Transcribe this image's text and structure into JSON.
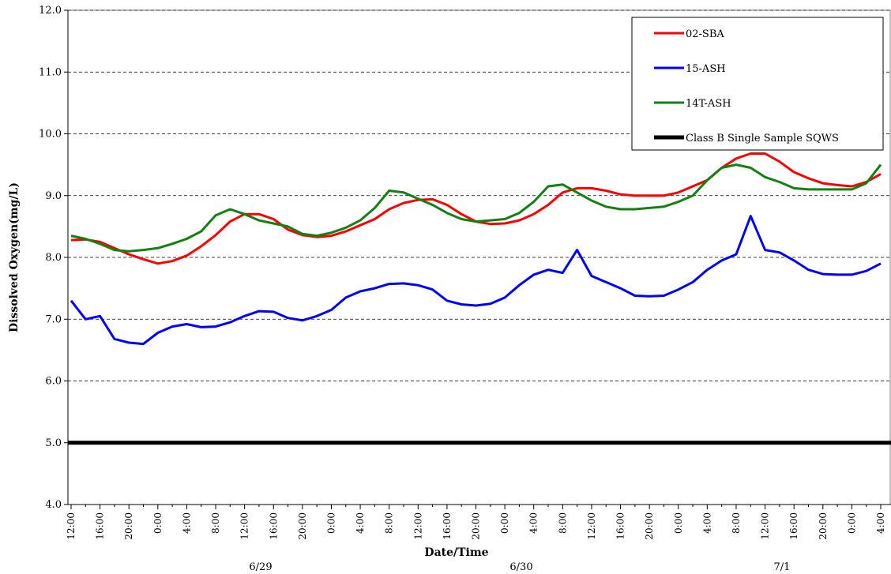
{
  "chart_data": {
    "type": "line",
    "x_label": "Date/Time",
    "y_label": "Dissolved Oxygen(mg/L)",
    "categories": [
      "12:00",
      null,
      "16:00",
      null,
      "20:00",
      null,
      "0:00",
      null,
      "4:00",
      null,
      "8:00",
      null,
      "12:00",
      null,
      "16:00",
      null,
      "20:00",
      null,
      "0:00",
      null,
      "4:00",
      null,
      "8:00",
      null,
      "12:00",
      null,
      "16:00",
      null,
      "20:00",
      null,
      "0:00",
      null,
      "4:00",
      null,
      "8:00",
      null,
      "12:00",
      null,
      "16:00",
      null,
      "20:00",
      null,
      "0:00",
      null,
      "4:00",
      null,
      "8:00",
      null,
      "12:00",
      null,
      "16:00",
      null,
      "20:00",
      null,
      "0:00",
      null,
      "4:00"
    ],
    "date_labels": [
      "6/29",
      "6/30",
      "7/1"
    ],
    "series": [
      {
        "name": "02-SBA",
        "color": "#ff0000",
        "values": [
          8.28,
          8.29,
          8.25,
          8.15,
          8.05,
          7.97,
          7.9,
          7.94,
          8.03,
          8.18,
          8.36,
          8.58,
          8.7,
          8.7,
          8.62,
          8.45,
          8.36,
          8.33,
          8.35,
          8.42,
          8.52,
          8.62,
          8.78,
          8.88,
          8.93,
          8.94,
          8.85,
          8.7,
          8.58,
          8.54,
          8.55,
          8.6,
          8.7,
          8.85,
          9.05,
          9.12,
          9.12,
          9.08,
          9.02,
          9.0,
          9.0,
          9.0,
          9.05,
          9.15,
          9.25,
          9.45,
          9.6,
          9.68,
          9.68,
          9.55,
          9.38,
          9.28,
          9.2,
          9.17,
          9.15,
          9.22,
          9.35
        ]
      },
      {
        "name": "15-ASH",
        "color": "#0000ff",
        "values": [
          7.3,
          7.0,
          7.05,
          6.68,
          6.62,
          6.6,
          6.78,
          6.88,
          6.92,
          6.87,
          6.88,
          6.95,
          7.05,
          7.13,
          7.12,
          7.02,
          6.98,
          7.05,
          7.15,
          7.35,
          7.45,
          7.5,
          7.57,
          7.58,
          7.55,
          7.48,
          7.3,
          7.24,
          7.22,
          7.25,
          7.35,
          7.55,
          7.72,
          7.8,
          7.75,
          8.12,
          7.7,
          7.6,
          7.5,
          7.38,
          7.37,
          7.38,
          7.48,
          7.6,
          7.8,
          7.95,
          8.05,
          8.67,
          8.12,
          8.08,
          7.95,
          7.8,
          7.73,
          7.72,
          7.72,
          7.78,
          7.9
        ]
      },
      {
        "name": "14T-ASH",
        "color": "#138013",
        "values": [
          8.35,
          8.3,
          8.22,
          8.12,
          8.1,
          8.12,
          8.15,
          8.22,
          8.3,
          8.42,
          8.68,
          8.78,
          8.7,
          8.6,
          8.55,
          8.5,
          8.38,
          8.35,
          8.4,
          8.48,
          8.6,
          8.8,
          9.08,
          9.05,
          8.95,
          8.85,
          8.72,
          8.62,
          8.58,
          8.6,
          8.62,
          8.72,
          8.9,
          9.15,
          9.18,
          9.05,
          8.92,
          8.82,
          8.78,
          8.78,
          8.8,
          8.82,
          8.9,
          9.0,
          9.25,
          9.45,
          9.5,
          9.45,
          9.3,
          9.22,
          9.12,
          9.1,
          9.1,
          9.1,
          9.1,
          9.2,
          9.5
        ]
      }
    ],
    "threshold": {
      "name": "Class B Single Sample SQWS",
      "value": 5,
      "color": "#000000"
    },
    "ylim": [
      4,
      12
    ],
    "yticks": [
      {
        "value": 4,
        "label": "4.0"
      },
      {
        "value": 5,
        "label": "5.0"
      },
      {
        "value": 6,
        "label": "6.0"
      },
      {
        "value": 7,
        "label": "7.0"
      },
      {
        "value": 8,
        "label": "8.0"
      },
      {
        "value": 9,
        "label": "9.0"
      },
      {
        "value": 10,
        "label": "10.0"
      },
      {
        "value": 11,
        "label": "11.0"
      },
      {
        "value": 12,
        "label": "12.0"
      }
    ],
    "grid": true,
    "legend": "upper right"
  }
}
